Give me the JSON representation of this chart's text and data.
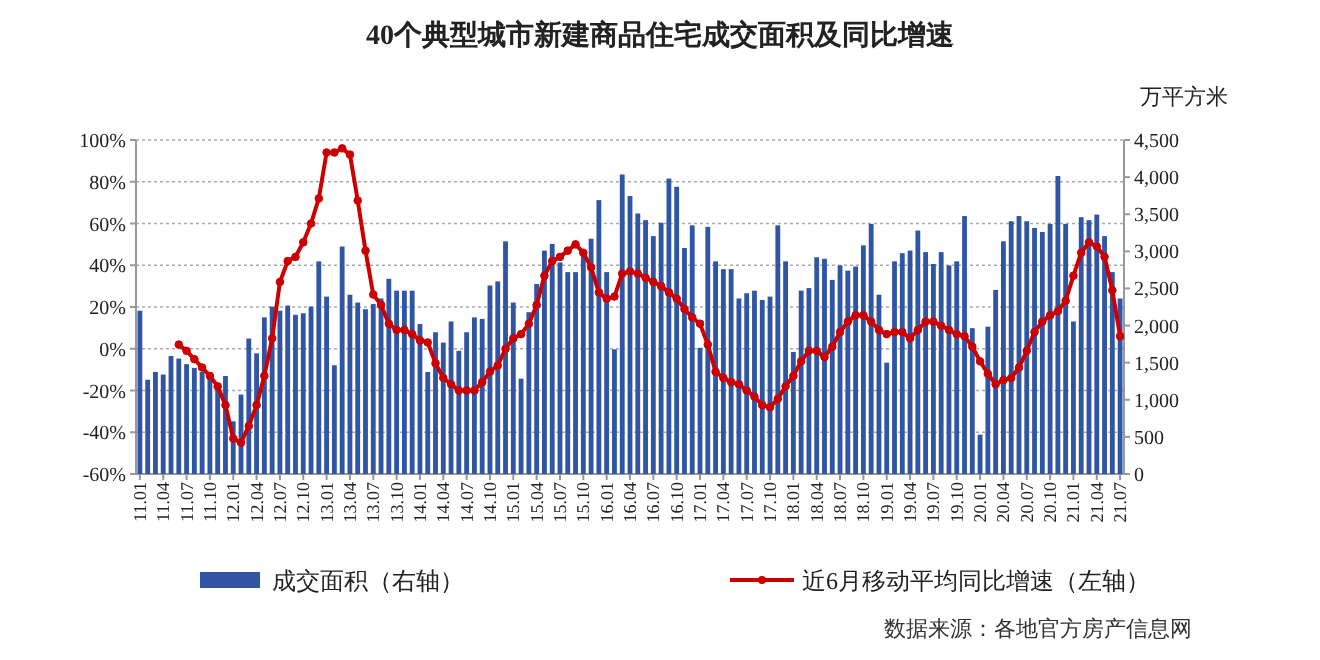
{
  "chart_data": {
    "type": "bar",
    "title": "40个典型城市新建商品住宅成交面积及同比增速",
    "y2label": "万平方米",
    "annotations": [
      "数据来源：各地官方房产信息网"
    ],
    "categories": [
      "11.01",
      null,
      null,
      "11.04",
      null,
      null,
      "11.07",
      null,
      null,
      "11.10",
      null,
      null,
      "12.01",
      null,
      null,
      "12.04",
      null,
      null,
      "12.07",
      null,
      null,
      "12.10",
      null,
      null,
      "13.01",
      null,
      null,
      "13.04",
      null,
      null,
      "13.07",
      null,
      null,
      "13.10",
      null,
      null,
      "14.01",
      null,
      null,
      "14.04",
      null,
      null,
      "14.07",
      null,
      null,
      "14.10",
      null,
      null,
      "15.01",
      null,
      null,
      "15.04",
      null,
      null,
      "15.07",
      null,
      null,
      "15.10",
      null,
      null,
      "16.01",
      null,
      null,
      "16.04",
      null,
      null,
      "16.07",
      null,
      null,
      "16.10",
      null,
      null,
      "17.01",
      null,
      null,
      "17.04",
      null,
      null,
      "17.07",
      null,
      null,
      "17.10",
      null,
      null,
      "18.01",
      null,
      null,
      "18.04",
      null,
      null,
      "18.07",
      null,
      null,
      "18.10",
      null,
      null,
      "19.01",
      null,
      null,
      "19.04",
      null,
      null,
      "19.07",
      null,
      null,
      "19.10",
      null,
      null,
      "20.01",
      null,
      null,
      "20.04",
      null,
      null,
      "20.07",
      null,
      null,
      "20.10",
      null,
      null,
      "21.01",
      null,
      null,
      "21.04",
      null,
      null,
      "21.07"
    ],
    "series": [
      {
        "name": "成交面积（右轴）",
        "axis": "y2",
        "color": "#2f55a4",
        "values": [
          2200,
          1270,
          1375,
          1340,
          1590,
          1555,
          1480,
          1430,
          1375,
          1340,
          1195,
          1320,
          710,
          1070,
          1825,
          1625,
          2110,
          2255,
          2200,
          2270,
          2145,
          2165,
          2255,
          2865,
          2390,
          1465,
          3065,
          2415,
          2310,
          2220,
          2290,
          2365,
          2630,
          2470,
          2470,
          2470,
          2020,
          1375,
          1910,
          1770,
          2055,
          1660,
          1910,
          2110,
          2090,
          2540,
          2595,
          3135,
          2310,
          1285,
          2180,
          2560,
          3010,
          3100,
          2850,
          2720,
          2720,
          2975,
          3170,
          3690,
          2720,
          1680,
          4035,
          3745,
          3510,
          3420,
          3205,
          3385,
          3980,
          3870,
          3045,
          3350,
          1700,
          3330,
          2865,
          2760,
          2760,
          2365,
          2435,
          2470,
          2345,
          2390,
          3350,
          2865,
          1645,
          2470,
          2505,
          2920,
          2900,
          2615,
          2810,
          2740,
          2795,
          3080,
          3370,
          2415,
          1500,
          2865,
          2975,
          3010,
          3280,
          2990,
          2830,
          2990,
          2810,
          2865,
          3475,
          1965,
          530,
          1985,
          2480,
          3135,
          3405,
          3475,
          3405,
          3315,
          3260,
          3370,
          4015,
          3370,
          2055,
          3460,
          3420,
          3495,
          3205,
          2720,
          2365
        ]
      },
      {
        "name": "近6月移动平均同比增速（左轴）",
        "type": "line",
        "axis": "y",
        "color": "#cc0000",
        "values": [
          null,
          null,
          null,
          null,
          null,
          2,
          -1,
          -5,
          -9,
          -13,
          -18,
          -27,
          -43,
          -45,
          -37,
          -27,
          -13,
          5,
          32,
          42,
          44,
          51,
          60,
          72,
          94,
          94,
          96,
          93,
          71,
          47,
          26,
          21,
          12,
          9,
          9,
          7,
          4,
          3,
          -7,
          -14,
          -17,
          -20,
          -20,
          -20,
          -16,
          -11,
          -8,
          0,
          5,
          7,
          12,
          21,
          35,
          42,
          44,
          47,
          50,
          46,
          39,
          27,
          24,
          25,
          36,
          37,
          36,
          34,
          32,
          30,
          27,
          24,
          19,
          15,
          12,
          2,
          -11,
          -14,
          -16,
          -17,
          -20,
          -23,
          -27,
          -28,
          -24,
          -18,
          -13,
          -6,
          -1,
          -1,
          -4,
          1,
          8,
          13,
          16,
          16,
          13,
          9,
          7,
          8,
          8,
          5,
          9,
          13,
          13,
          11,
          9,
          7,
          6,
          1,
          -6,
          -12,
          -17,
          -15,
          -14,
          -9,
          -1,
          8,
          13,
          16,
          18,
          23,
          35,
          46,
          51,
          49,
          44,
          28,
          6
        ]
      }
    ],
    "ylim": [
      -60,
      100
    ],
    "yticks": [
      {
        "value": -60,
        "label": "-60%"
      },
      {
        "value": -40,
        "label": "-40%"
      },
      {
        "value": -20,
        "label": "-20%"
      },
      {
        "value": 0,
        "label": "0%"
      },
      {
        "value": 20,
        "label": "20%"
      },
      {
        "value": 40,
        "label": "40%"
      },
      {
        "value": 60,
        "label": "60%"
      },
      {
        "value": 80,
        "label": "80%"
      },
      {
        "value": 100,
        "label": "100%"
      }
    ],
    "y2lim": [
      0,
      4500
    ],
    "y2ticks": [
      0,
      {
        "value": 500,
        "label": "500"
      },
      {
        "value": 1000,
        "label": "1,000"
      },
      {
        "value": 1500,
        "label": "1,500"
      },
      {
        "value": 2000,
        "label": "2,000"
      },
      {
        "value": 2500,
        "label": "2,500"
      },
      {
        "value": 3000,
        "label": "3,000"
      },
      {
        "value": 3500,
        "label": "3,500"
      },
      {
        "value": 4000,
        "label": "4,000"
      },
      {
        "value": 4500,
        "label": "4,500"
      }
    ],
    "grid": "y",
    "legend": "bottom",
    "marker": "circle"
  }
}
